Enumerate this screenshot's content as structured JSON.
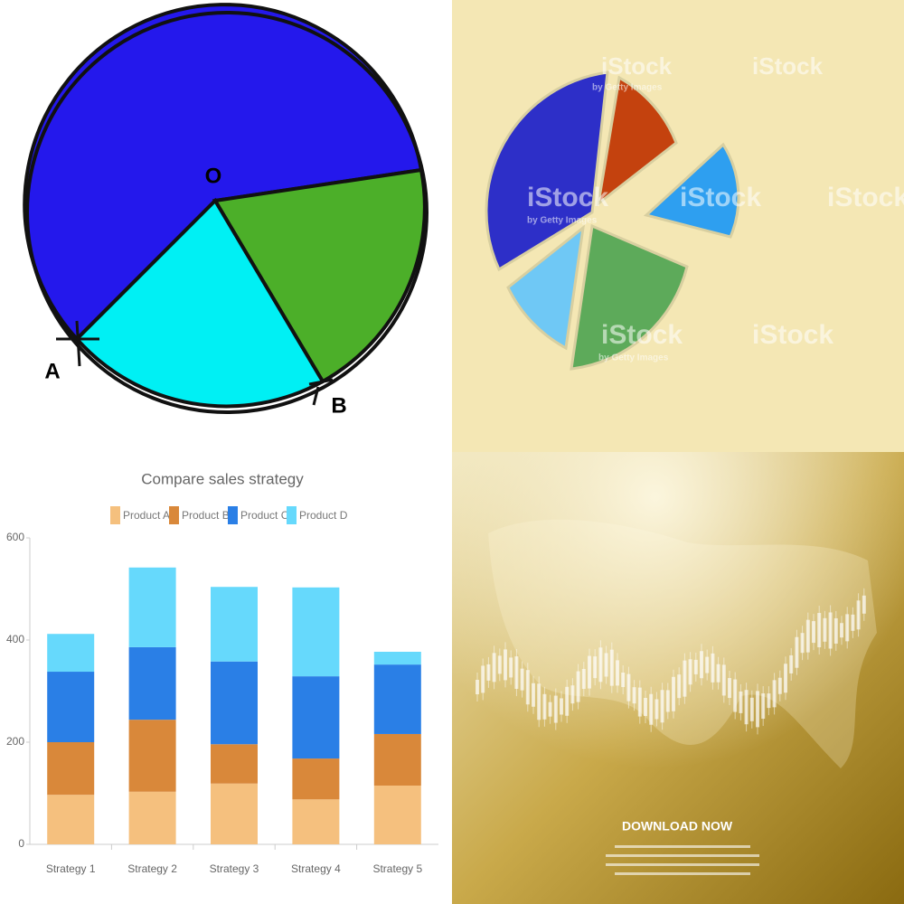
{
  "geometry_pie": {
    "labels": [
      "O",
      "A",
      "B"
    ]
  },
  "stock_pie": {
    "watermark": "iStock",
    "byline": "by Getty Images"
  },
  "chart_data": {
    "type": "stacked_bar",
    "title": "Compare sales strategy",
    "categories": [
      "Strategy 1",
      "Strategy 2",
      "Strategy 3",
      "Strategy 4",
      "Strategy 5"
    ],
    "series": [
      {
        "name": "Product A",
        "color": "#f5c07e",
        "values": [
          97,
          103,
          119,
          88,
          115
        ]
      },
      {
        "name": "Product B",
        "color": "#d9883a",
        "values": [
          103,
          141,
          77,
          80,
          101
        ]
      },
      {
        "name": "Product C",
        "color": "#2a7fe6",
        "values": [
          138,
          142,
          162,
          161,
          136
        ]
      },
      {
        "name": "Product D",
        "color": "#66d9fc",
        "values": [
          74,
          156,
          146,
          174,
          25
        ]
      }
    ],
    "ylim": [
      0,
      600
    ],
    "yticks": [
      0,
      200,
      400,
      600
    ],
    "grid": false,
    "legend": "top"
  },
  "banner": {
    "title": "DOWNLOAD NOW"
  }
}
